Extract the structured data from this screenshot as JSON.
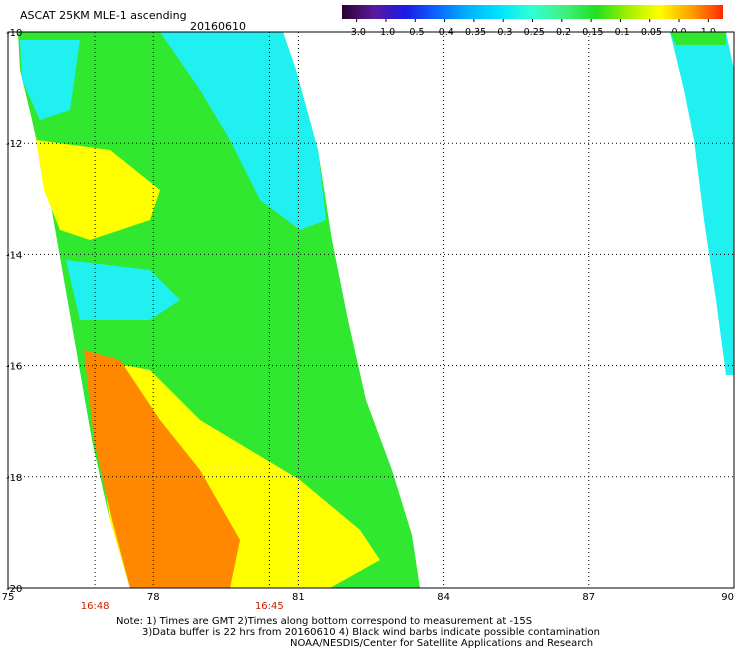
{
  "header": {
    "title": "ASCAT 25KM MLE-1 ascending",
    "date": "20160610"
  },
  "colorbar": {
    "labels": [
      "-3.0",
      "-1.0",
      "-0.5",
      "-0.4",
      "-0.35",
      "-0.3",
      "-0.25",
      "-0.2",
      "-0.15",
      "-0.1",
      "-0.05",
      "0.0",
      "1.0"
    ],
    "colors": [
      "#2a0030",
      "#5a1a9a",
      "#1a1ae6",
      "#0a66ff",
      "#00b4ff",
      "#00e6ff",
      "#30ffd0",
      "#40f080",
      "#20e020",
      "#a0f000",
      "#ffff00",
      "#ffa000",
      "#ff2800"
    ]
  },
  "axes": {
    "x_ticks": [
      "75",
      "78",
      "81",
      "84",
      "87",
      "90"
    ],
    "y_ticks": [
      "-10",
      "-12",
      "-14",
      "-16",
      "-18",
      "-20"
    ],
    "x_range": [
      75,
      90
    ],
    "y_range": [
      -20,
      -10
    ]
  },
  "time_labels": [
    {
      "text": "16:48",
      "lon": 76.8
    },
    {
      "text": "16:45",
      "lon": 80.4
    }
  ],
  "footer": {
    "note_line1": "Note: 1) Times are GMT 2)Times along bottom correspond to measurement at -15S",
    "note_line2": "3)Data buffer is 22 hrs from 20160610 4) Black wind barbs indicate possible contamination",
    "credit": "NOAA/NESDIS/Center for Satellite Applications and Research"
  },
  "palette": {
    "time_label_color": "#c81e00",
    "cyan": "#20f0f0",
    "green": "#30e830",
    "yellow": "#ffff00",
    "orange": "#ff8800"
  }
}
